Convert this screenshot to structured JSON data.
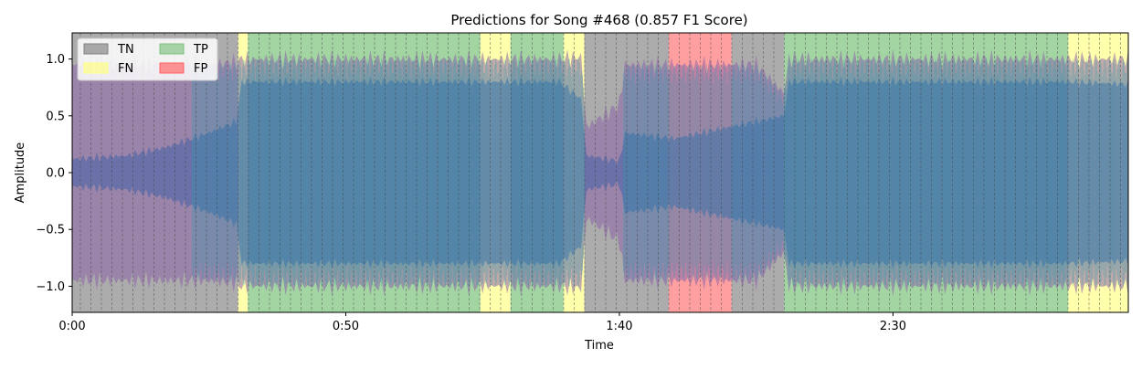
{
  "chart_data": {
    "type": "area",
    "title": "Predictions for Song #468 (0.857 F1 Score)",
    "xlabel": "Time",
    "ylabel": "Amplitude",
    "xlim": [
      0,
      193
    ],
    "ylim": [
      -1.23,
      1.23
    ],
    "x_ticks": [
      {
        "value": 0,
        "label": "0:00"
      },
      {
        "value": 50,
        "label": "0:50"
      },
      {
        "value": 100,
        "label": "1:40"
      },
      {
        "value": 150,
        "label": "2:30"
      }
    ],
    "y_ticks": [
      {
        "value": 1.0,
        "label": "1.0"
      },
      {
        "value": 0.5,
        "label": "0.5"
      },
      {
        "value": 0.0,
        "label": "0.0"
      },
      {
        "value": -0.5,
        "label": "−0.5"
      },
      {
        "value": -1.0,
        "label": "−1.0"
      }
    ],
    "grid": false,
    "legend": {
      "placement": "top-left",
      "columns": 2,
      "entries": [
        {
          "label": "TN",
          "color": "#808080"
        },
        {
          "label": "FN",
          "color": "#ffff80"
        },
        {
          "label": "TP",
          "color": "#80c080"
        },
        {
          "label": "FP",
          "color": "#ff6060"
        }
      ]
    },
    "category_colors": {
      "TN": "#808080",
      "FN": "#ffff80",
      "TP": "#72bf72",
      "FP": "#ff6b6b"
    },
    "waveform_colors": {
      "base": "#8e64a8",
      "positive": "#1aa0b0",
      "dark": "#2e5ba8"
    },
    "beat_interval_s": 1.92,
    "segments": [
      {
        "start": 0.0,
        "end": 30.3,
        "label": "TN"
      },
      {
        "start": 30.3,
        "end": 32.1,
        "label": "FN"
      },
      {
        "start": 32.1,
        "end": 74.6,
        "label": "TP"
      },
      {
        "start": 74.6,
        "end": 80.1,
        "label": "FN"
      },
      {
        "start": 80.1,
        "end": 89.8,
        "label": "TP"
      },
      {
        "start": 89.8,
        "end": 93.6,
        "label": "FN"
      },
      {
        "start": 93.6,
        "end": 109.0,
        "label": "TN"
      },
      {
        "start": 109.0,
        "end": 120.5,
        "label": "FP"
      },
      {
        "start": 120.5,
        "end": 130.1,
        "label": "TN"
      },
      {
        "start": 130.1,
        "end": 182.0,
        "label": "TP"
      },
      {
        "start": 182.0,
        "end": 193.0,
        "label": "FN"
      }
    ],
    "envelope": [
      {
        "t": 0,
        "outer": 0.95,
        "inner": 0.12
      },
      {
        "t": 10,
        "outer": 0.95,
        "inner": 0.15
      },
      {
        "t": 17,
        "outer": 0.95,
        "inner": 0.22
      },
      {
        "t": 25,
        "outer": 0.95,
        "inner": 0.35
      },
      {
        "t": 30,
        "outer": 0.97,
        "inner": 0.45
      },
      {
        "t": 31,
        "outer": 1.0,
        "inner": 0.8
      },
      {
        "t": 60,
        "outer": 1.0,
        "inner": 0.8
      },
      {
        "t": 89,
        "outer": 1.0,
        "inner": 0.8
      },
      {
        "t": 93,
        "outer": 1.02,
        "inner": 0.65
      },
      {
        "t": 94,
        "outer": 0.4,
        "inner": 0.15
      },
      {
        "t": 100,
        "outer": 0.6,
        "inner": 0.1
      },
      {
        "t": 101,
        "outer": 0.95,
        "inner": 0.35
      },
      {
        "t": 110,
        "outer": 0.95,
        "inner": 0.3
      },
      {
        "t": 125,
        "outer": 0.95,
        "inner": 0.45
      },
      {
        "t": 130,
        "outer": 0.7,
        "inner": 0.5
      },
      {
        "t": 131,
        "outer": 1.0,
        "inner": 0.8
      },
      {
        "t": 181,
        "outer": 1.0,
        "inner": 0.8
      },
      {
        "t": 193,
        "outer": 1.0,
        "inner": 0.78
      }
    ]
  }
}
